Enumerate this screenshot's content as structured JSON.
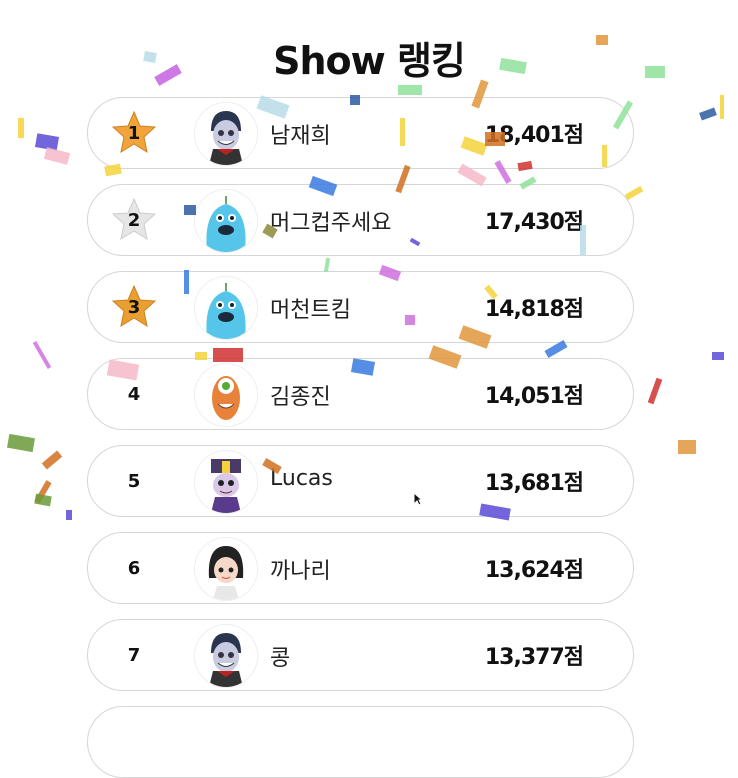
{
  "title": "Show 랭킹",
  "ranking": [
    {
      "rank": "1",
      "name": "남재희",
      "score": "18,401점",
      "medal": "gold-star",
      "avatar": "vampire"
    },
    {
      "rank": "2",
      "name": "머그컵주세요",
      "score": "17,430점",
      "medal": "silver-star",
      "avatar": "blue-monster"
    },
    {
      "rank": "3",
      "name": "머천트킴",
      "score": "14,818점",
      "medal": "bronze-star",
      "avatar": "blue-monster"
    },
    {
      "rank": "4",
      "name": "김종진",
      "score": "14,051점",
      "medal": "none",
      "avatar": "orange-cyclops"
    },
    {
      "rank": "5",
      "name": "Lucas",
      "score": "13,681점",
      "medal": "none",
      "avatar": "jiangshi"
    },
    {
      "rank": "6",
      "name": "까나리",
      "score": "13,624점",
      "medal": "none",
      "avatar": "girl"
    },
    {
      "rank": "7",
      "name": "콩",
      "score": "13,377점",
      "medal": "none",
      "avatar": "vampire"
    }
  ],
  "colors": {
    "gold": "#f0a43a",
    "silver": "#e6e6e6",
    "bronze": "#e9a030"
  }
}
